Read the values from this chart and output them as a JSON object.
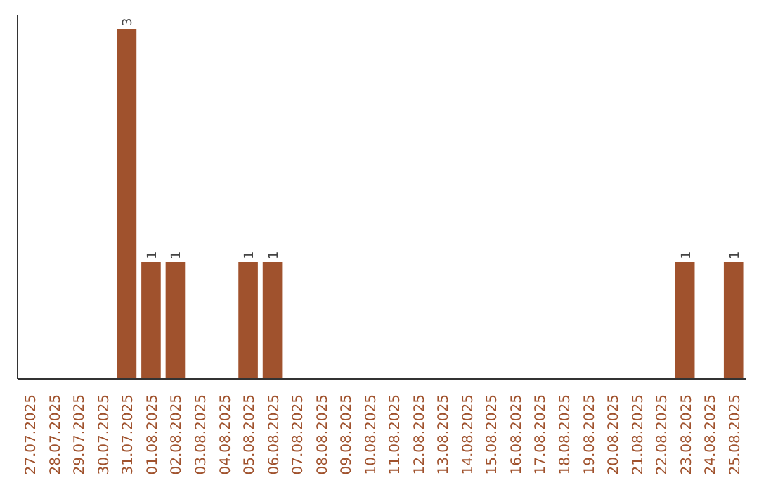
{
  "chart_data": {
    "type": "bar",
    "categories": [
      "27.07.2025",
      "28.07.2025",
      "29.07.2025",
      "30.07.2025",
      "31.07.2025",
      "01.08.2025",
      "02.08.2025",
      "03.08.2025",
      "04.08.2025",
      "05.08.2025",
      "06.08.2025",
      "07.08.2025",
      "08.08.2025",
      "09.08.2025",
      "10.08.2025",
      "11.08.2025",
      "12.08.2025",
      "13.08.2025",
      "14.08.2025",
      "15.08.2025",
      "16.08.2025",
      "17.08.2025",
      "18.08.2025",
      "19.08.2025",
      "20.08.2025",
      "21.08.2025",
      "22.08.2025",
      "23.08.2025",
      "24.08.2025",
      "25.08.2025"
    ],
    "values": [
      0,
      0,
      0,
      0,
      3,
      1,
      1,
      0,
      0,
      1,
      1,
      0,
      0,
      0,
      0,
      0,
      0,
      0,
      0,
      0,
      0,
      0,
      0,
      0,
      0,
      0,
      0,
      1,
      0,
      1
    ],
    "value_labels": [
      null,
      null,
      null,
      null,
      "3",
      "1",
      "1",
      null,
      null,
      "1",
      "1",
      null,
      null,
      null,
      null,
      null,
      null,
      null,
      null,
      null,
      null,
      null,
      null,
      null,
      null,
      null,
      null,
      "1",
      null,
      "1"
    ],
    "color": "#a0522d",
    "grid": false,
    "tick_labels": "x"
  }
}
